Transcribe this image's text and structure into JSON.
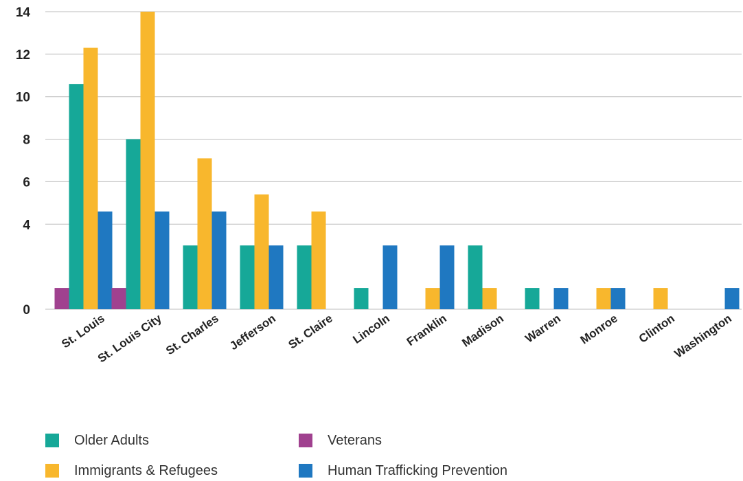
{
  "chart_data": {
    "type": "bar",
    "title": "",
    "xlabel": "",
    "ylabel": "",
    "ylim": [
      0,
      14
    ],
    "yticks": [
      0,
      4,
      6,
      8,
      10,
      12,
      14
    ],
    "grid": true,
    "legend_position": "bottom",
    "categories": [
      "St. Louis",
      "St. Louis City",
      "St. Charles",
      "Jefferson",
      "St. Claire",
      "Lincoln",
      "Franklin",
      "Madison",
      "Warren",
      "Monroe",
      "Clinton",
      "Washington"
    ],
    "series": [
      {
        "name": "Veterans",
        "color": "#a0418f",
        "values": [
          1,
          1,
          0,
          0,
          0,
          0,
          0,
          0,
          0,
          0,
          0,
          0
        ]
      },
      {
        "name": "Older Adults",
        "color": "#16a898",
        "values": [
          10.6,
          8,
          3,
          3,
          3,
          1,
          0,
          3,
          1,
          0,
          0,
          0
        ]
      },
      {
        "name": "Immigrants & Refugees",
        "color": "#f8b72d",
        "values": [
          12.3,
          14,
          7.1,
          5.4,
          4.6,
          0,
          1,
          1,
          0,
          1,
          1,
          0
        ]
      },
      {
        "name": "Human Trafficking Prevention",
        "color": "#1f78c1",
        "values": [
          4.6,
          4.6,
          4.6,
          3,
          0,
          3,
          3,
          0,
          1,
          1,
          0,
          1
        ]
      }
    ]
  },
  "legend": [
    {
      "label": "Older Adults",
      "color": "#16a898"
    },
    {
      "label": "Veterans",
      "color": "#a0418f"
    },
    {
      "label": "Immigrants & Refugees",
      "color": "#f8b72d"
    },
    {
      "label": "Human Trafficking Prevention",
      "color": "#1f78c1"
    }
  ]
}
